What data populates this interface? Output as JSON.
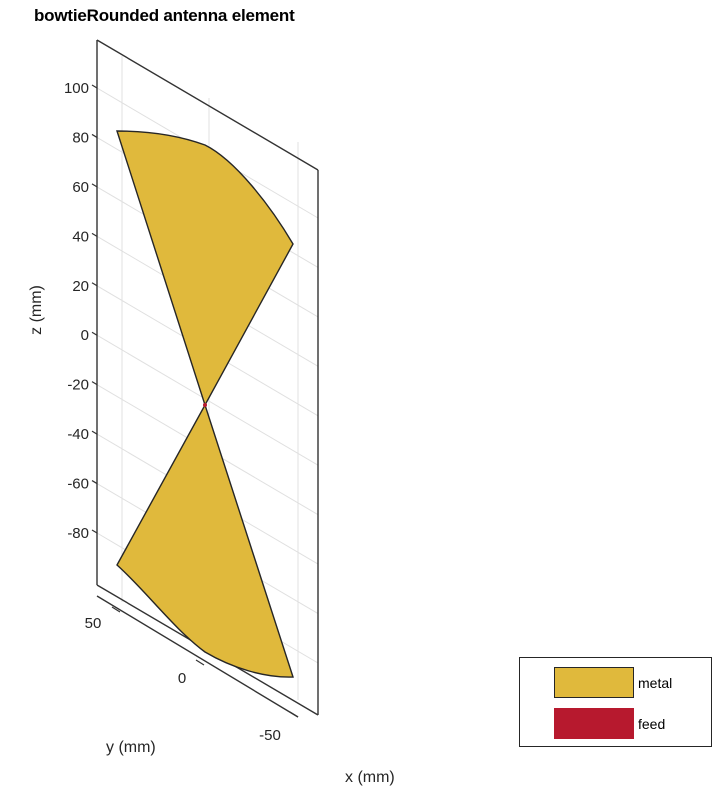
{
  "chart_data": {
    "type": "3d-geometry",
    "title": "bowtieRounded antenna element",
    "xlabel": "x (mm)",
    "ylabel": "y (mm)",
    "zlabel": "z (mm)",
    "z_ticks": [
      100,
      80,
      60,
      40,
      20,
      0,
      -20,
      -40,
      -60,
      -80
    ],
    "y_ticks": [
      50,
      0,
      -50
    ],
    "legend": [
      {
        "name": "metal",
        "color": "#E0B93C"
      },
      {
        "name": "feed",
        "color": "#B7192E"
      }
    ],
    "legend_position": "bottom-right",
    "grid": true
  }
}
